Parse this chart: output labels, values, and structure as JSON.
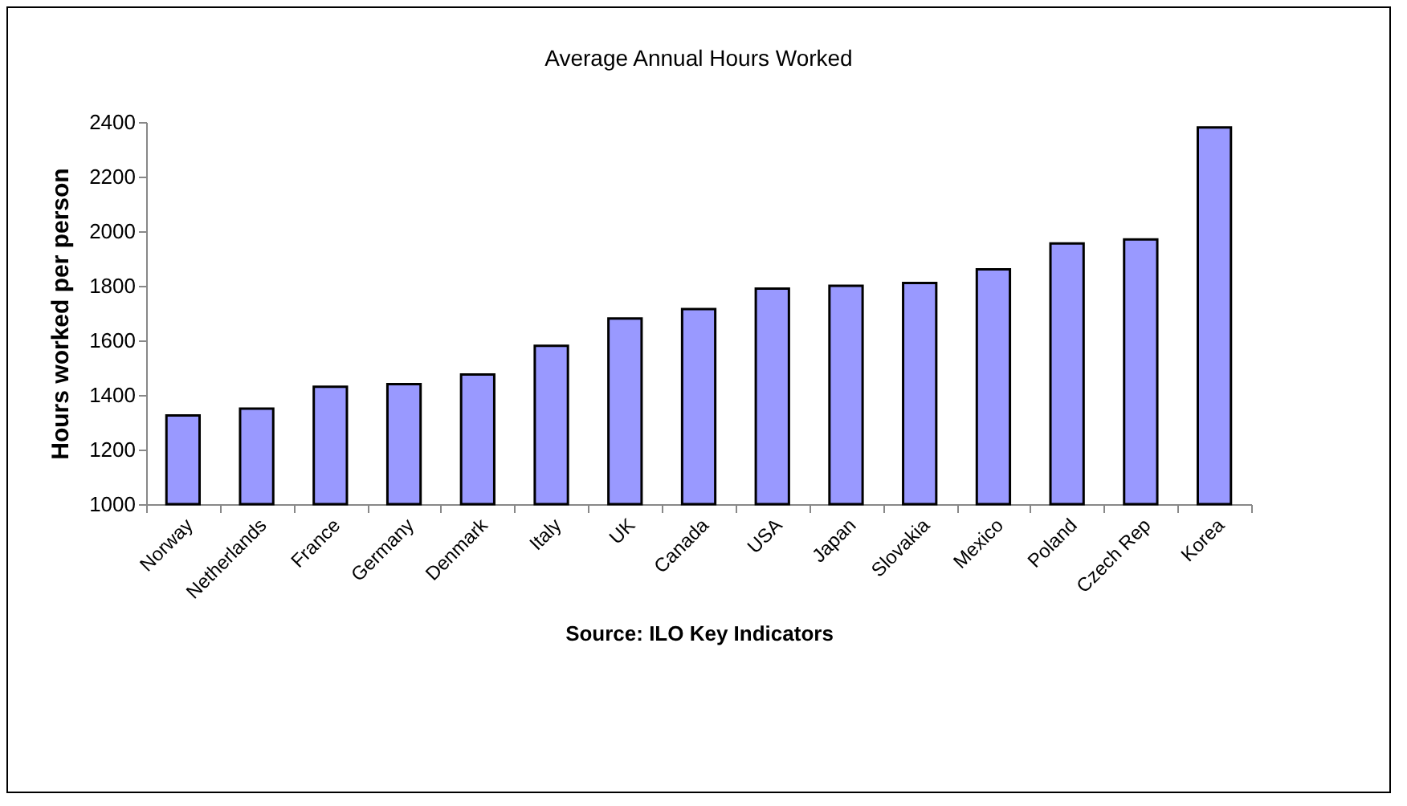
{
  "chart_data": {
    "type": "bar",
    "title": "Average Annual Hours Worked",
    "ylabel": "Hours worked per person",
    "annotations": [
      "Source: ILO Key Indicators"
    ],
    "categories": [
      "Norway",
      "Netherlands",
      "France",
      "Germany",
      "Denmark",
      "Italy",
      "UK",
      "Canada",
      "USA",
      "Japan",
      "Slovakia",
      "Mexico",
      "Poland",
      "Czech Rep",
      "Korea"
    ],
    "values": [
      1325,
      1350,
      1430,
      1440,
      1475,
      1580,
      1680,
      1715,
      1790,
      1800,
      1810,
      1860,
      1955,
      1970,
      2380
    ],
    "color": "#9999ff",
    "ylim": [
      1000,
      2400
    ],
    "yticks": [
      1000,
      1200,
      1400,
      1600,
      1800,
      2000,
      2200,
      2400
    ],
    "grid": false
  }
}
